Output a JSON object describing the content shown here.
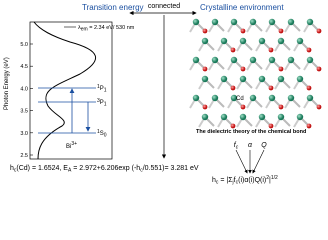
{
  "left": {
    "title": "Transition energy",
    "y_axis_label": "Photon Energy (eV)",
    "yticks": [
      "5.0",
      "4.5",
      "4.0",
      "3.5",
      "3.0",
      "2.5"
    ],
    "emission_label": [
      "λ",
      "em",
      " = 2.34 eV/ 530 nm"
    ],
    "levels": [
      [
        "1",
        "P",
        "1"
      ],
      [
        "3",
        "P",
        "1"
      ],
      [
        "1",
        "S",
        "0"
      ]
    ],
    "ion": [
      "Bi",
      "3+"
    ]
  },
  "middle": {
    "label": "connected"
  },
  "right": {
    "title": "Crystalline environment",
    "atom_label": "Cd",
    "caption": "The dielectric theory of the chemical bond",
    "factors": [
      [
        "f",
        "c"
      ],
      [
        "α",
        ""
      ],
      [
        "Q",
        ""
      ]
    ]
  },
  "formula1": [
    "h",
    "c",
    "(Cd) = 1.6524, E",
    "A",
    " = 2.972+6.206exp (-h",
    "c",
    "/0.551)= 3.281 eV"
  ],
  "formula2": [
    "h",
    "c",
    " = |Σ",
    "j",
    "f",
    "c",
    "(i)α(i)Q(i)",
    "2",
    "|",
    "1/2"
  ]
}
